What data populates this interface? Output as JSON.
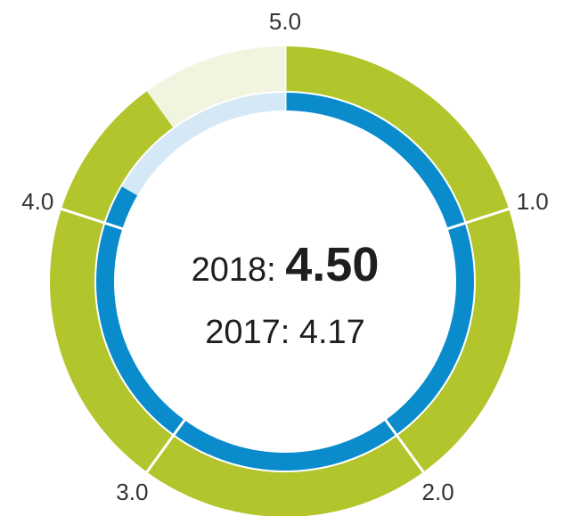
{
  "chart_data": {
    "type": "gauge",
    "scale": {
      "min": 0,
      "max": 5
    },
    "tick_labels": [
      "1.0",
      "2.0",
      "3.0",
      "4.0",
      "5.0"
    ],
    "series": [
      {
        "name": "2018",
        "value": 4.5,
        "ring": "outer",
        "color": "#b3c52c",
        "remainder_color": "#f1f4df"
      },
      {
        "name": "2017",
        "value": 4.17,
        "ring": "inner",
        "color": "#0a8ccc",
        "remainder_color": "#d4e9f5"
      }
    ],
    "center": {
      "line1_prefix": "2018: ",
      "line1_value": "4.50",
      "line2": "2017: 4.17"
    }
  }
}
